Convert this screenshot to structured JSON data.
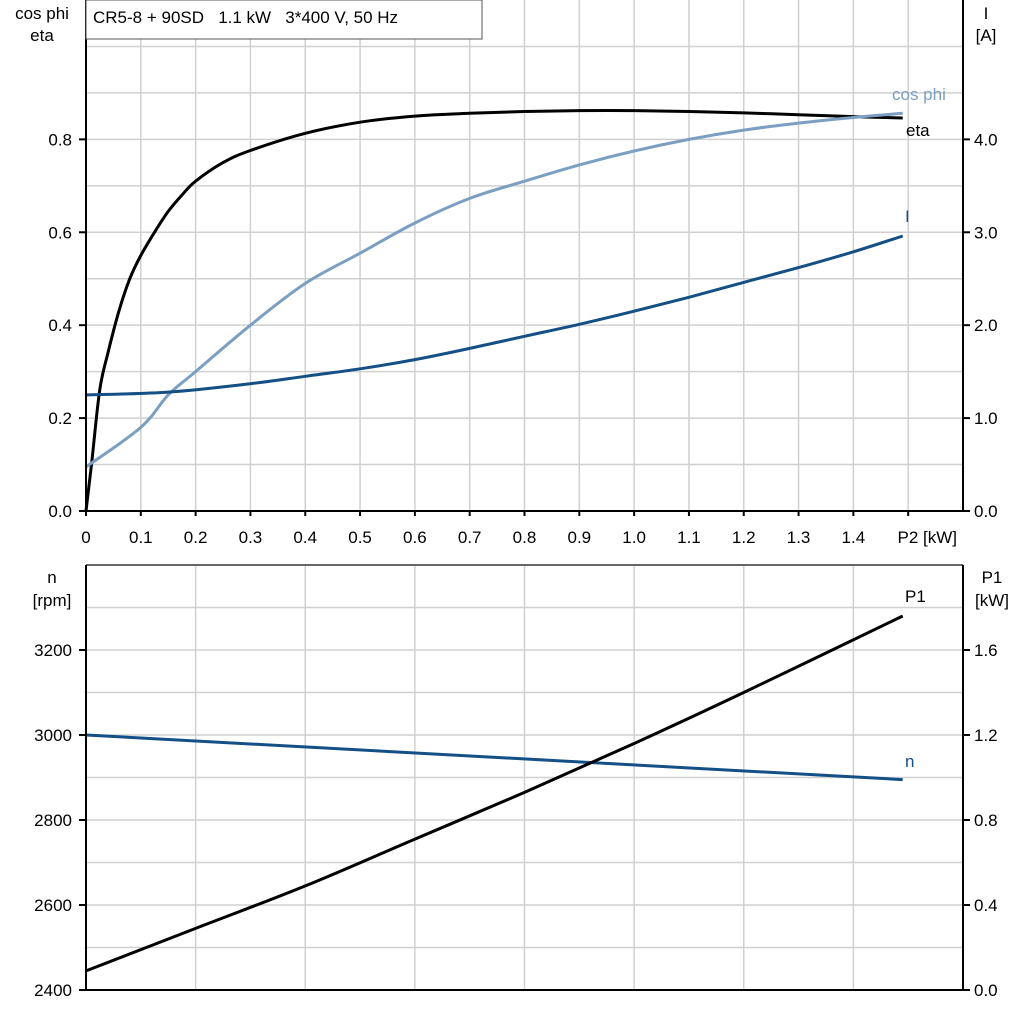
{
  "title": "CR5-8 + 90SD   1.1 kW   3*400 V, 50 Hz",
  "chart_data": [
    {
      "type": "line",
      "xlabel": "P2 [kW]",
      "x_tick_labels": [
        "0",
        "0.1",
        "0.2",
        "0.3",
        "0.4",
        "0.5",
        "0.6",
        "0.7",
        "0.8",
        "0.9",
        "1.0",
        "1.1",
        "1.2",
        "1.3",
        "1.4",
        "P2 [kW]"
      ],
      "xlim": [
        0,
        1.6
      ],
      "ylabel_left": [
        "cos phi",
        "eta"
      ],
      "ylim_left": [
        0,
        1.1
      ],
      "y_ticks_left": [
        "0.0",
        "0.2",
        "0.4",
        "0.6",
        "0.8"
      ],
      "ylabel_right": [
        "I",
        "[A]"
      ],
      "ylim_right": [
        0,
        5.5
      ],
      "y_ticks_right": [
        "0.0",
        "1.0",
        "2.0",
        "3.0",
        "4.0"
      ],
      "grid": true,
      "series": [
        {
          "name": "eta",
          "axis": "left",
          "color": "#000000",
          "points": [
            [
              0,
              0
            ],
            [
              0.01,
              0.1
            ],
            [
              0.025,
              0.26
            ],
            [
              0.04,
              0.34
            ],
            [
              0.06,
              0.43
            ],
            [
              0.08,
              0.5
            ],
            [
              0.1,
              0.55
            ],
            [
              0.125,
              0.6
            ],
            [
              0.15,
              0.645
            ],
            [
              0.175,
              0.68
            ],
            [
              0.2,
              0.71
            ],
            [
              0.25,
              0.75
            ],
            [
              0.3,
              0.776
            ],
            [
              0.4,
              0.813
            ],
            [
              0.5,
              0.837
            ],
            [
              0.6,
              0.85
            ],
            [
              0.7,
              0.856
            ],
            [
              0.8,
              0.86
            ],
            [
              0.9,
              0.862
            ],
            [
              1.0,
              0.862
            ],
            [
              1.1,
              0.86
            ],
            [
              1.2,
              0.857
            ],
            [
              1.3,
              0.853
            ],
            [
              1.4,
              0.849
            ],
            [
              1.49,
              0.846
            ]
          ]
        },
        {
          "name": "cos phi",
          "axis": "left",
          "color": "#7b9fc2",
          "points": [
            [
              0,
              0.095
            ],
            [
              0.1,
              0.18
            ],
            [
              0.15,
              0.25
            ],
            [
              0.2,
              0.3
            ],
            [
              0.3,
              0.4
            ],
            [
              0.4,
              0.49
            ],
            [
              0.5,
              0.555
            ],
            [
              0.6,
              0.62
            ],
            [
              0.7,
              0.673
            ],
            [
              0.8,
              0.71
            ],
            [
              0.9,
              0.745
            ],
            [
              1.0,
              0.775
            ],
            [
              1.1,
              0.8
            ],
            [
              1.2,
              0.82
            ],
            [
              1.3,
              0.835
            ],
            [
              1.4,
              0.847
            ],
            [
              1.49,
              0.856
            ]
          ]
        },
        {
          "name": "I",
          "axis": "right",
          "color": "#144f86",
          "points": [
            [
              0,
              1.25
            ],
            [
              0.15,
              1.28
            ],
            [
              0.3,
              1.37
            ],
            [
              0.4,
              1.45
            ],
            [
              0.5,
              1.53
            ],
            [
              0.6,
              1.63
            ],
            [
              0.7,
              1.75
            ],
            [
              0.8,
              1.88
            ],
            [
              0.9,
              2.01
            ],
            [
              1.0,
              2.15
            ],
            [
              1.1,
              2.3
            ],
            [
              1.2,
              2.46
            ],
            [
              1.3,
              2.62
            ],
            [
              1.4,
              2.79
            ],
            [
              1.49,
              2.96
            ]
          ]
        }
      ]
    },
    {
      "type": "line",
      "xlim": [
        0,
        1.6
      ],
      "ylabel_left": [
        "n",
        "[rpm]"
      ],
      "ylim_left": [
        2400,
        3400
      ],
      "y_ticks_left": [
        "2400",
        "2600",
        "2800",
        "3000",
        "3200"
      ],
      "ylabel_right": [
        "P1",
        "[kW]"
      ],
      "ylim_right": [
        0,
        2.0
      ],
      "y_ticks_right": [
        "0.0",
        "0.4",
        "0.8",
        "1.2",
        "1.6"
      ],
      "grid": true,
      "series": [
        {
          "name": "n",
          "axis": "left",
          "color": "#144f86",
          "points": [
            [
              0,
              3000
            ],
            [
              1.49,
              2895
            ]
          ]
        },
        {
          "name": "P1",
          "axis": "right",
          "color": "#000000",
          "points": [
            [
              0,
              0.09
            ],
            [
              0.2,
              0.29
            ],
            [
              0.4,
              0.49
            ],
            [
              0.6,
              0.71
            ],
            [
              0.8,
              0.93
            ],
            [
              1.0,
              1.16
            ],
            [
              1.2,
              1.4
            ],
            [
              1.49,
              1.76
            ]
          ]
        }
      ]
    }
  ]
}
